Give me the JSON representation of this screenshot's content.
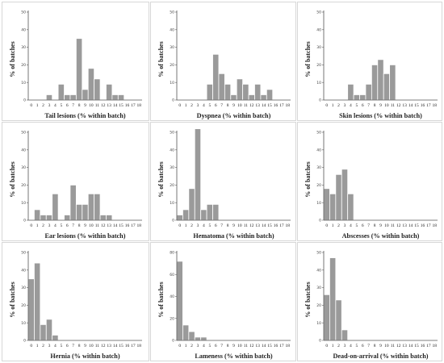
{
  "chart_data": [
    {
      "type": "bar",
      "xlabel": "Tail lesions (% within batch)",
      "ylabel": "% of batches",
      "ylim": [
        0,
        50
      ],
      "yticks": [
        0,
        10,
        20,
        30,
        40,
        50
      ],
      "categories": [
        "0",
        "1",
        "2",
        "3",
        "4",
        "5",
        "6",
        "7",
        "8",
        "9",
        "10",
        "11",
        "12",
        "13",
        "14",
        "15",
        "16",
        "17",
        "18"
      ],
      "values": [
        0,
        0,
        0,
        3,
        0,
        9,
        3,
        3,
        35,
        6,
        18,
        12,
        0,
        9,
        3,
        3,
        0,
        0,
        0
      ]
    },
    {
      "type": "bar",
      "xlabel": "Dyspnea (% within batch)",
      "ylabel": "% of batches",
      "ylim": [
        0,
        50
      ],
      "yticks": [
        0,
        10,
        20,
        30,
        40,
        50
      ],
      "categories": [
        "0",
        "1",
        "2",
        "3",
        "4",
        "5",
        "6",
        "7",
        "8",
        "9",
        "10",
        "11",
        "12",
        "13",
        "14",
        "15",
        "16",
        "17",
        "18"
      ],
      "values": [
        0,
        0,
        0,
        0,
        0,
        9,
        26,
        15,
        9,
        3,
        12,
        9,
        3,
        9,
        3,
        6,
        0,
        0,
        0
      ]
    },
    {
      "type": "bar",
      "xlabel": "Skin lesions (% within batch)",
      "ylabel": "% of batches",
      "ylim": [
        0,
        50
      ],
      "yticks": [
        0,
        10,
        20,
        30,
        40,
        50
      ],
      "categories": [
        "0",
        "1",
        "2",
        "3",
        "4",
        "5",
        "6",
        "7",
        "8",
        "9",
        "10",
        "11",
        "12",
        "13",
        "14",
        "15",
        "16",
        "17",
        "18"
      ],
      "values": [
        0,
        0,
        0,
        0,
        9,
        3,
        3,
        9,
        20,
        23,
        15,
        20,
        0,
        0,
        0,
        0,
        0,
        0,
        0
      ]
    },
    {
      "type": "bar",
      "xlabel": "Ear lesions (% within batch)",
      "ylabel": "% of batches",
      "ylim": [
        0,
        50
      ],
      "yticks": [
        0,
        10,
        20,
        30,
        40,
        50
      ],
      "categories": [
        "0",
        "1",
        "2",
        "3",
        "4",
        "5",
        "6",
        "7",
        "8",
        "9",
        "10",
        "11",
        "12",
        "13",
        "14",
        "15",
        "16",
        "17",
        "18"
      ],
      "values": [
        0,
        6,
        3,
        3,
        15,
        0,
        3,
        20,
        9,
        9,
        15,
        15,
        3,
        3,
        0,
        0,
        0,
        0,
        0
      ]
    },
    {
      "type": "bar",
      "xlabel": "Hematoma (% within batch)",
      "ylabel": "% of batches",
      "ylim": [
        0,
        50
      ],
      "yticks": [
        0,
        10,
        20,
        30,
        40,
        50
      ],
      "categories": [
        "0",
        "1",
        "2",
        "3",
        "4",
        "5",
        "6",
        "7",
        "8",
        "9",
        "10",
        "11",
        "12",
        "13",
        "14",
        "15",
        "16",
        "17",
        "18"
      ],
      "values": [
        3,
        6,
        18,
        52,
        6,
        9,
        9,
        0,
        0,
        0,
        0,
        0,
        0,
        0,
        0,
        0,
        0,
        0,
        0
      ]
    },
    {
      "type": "bar",
      "xlabel": "Abscesses (% within batch)",
      "ylabel": "% of batches",
      "ylim": [
        0,
        50
      ],
      "yticks": [
        0,
        10,
        20,
        30,
        40,
        50
      ],
      "categories": [
        "0",
        "1",
        "2",
        "3",
        "4",
        "5",
        "6",
        "7",
        "8",
        "9",
        "10",
        "11",
        "12",
        "13",
        "14",
        "15",
        "16",
        "17",
        "18"
      ],
      "values": [
        18,
        15,
        26,
        29,
        15,
        0,
        0,
        0,
        0,
        0,
        0,
        0,
        0,
        0,
        0,
        0,
        0,
        0,
        0
      ]
    },
    {
      "type": "bar",
      "xlabel": "Hernia (% within batch)",
      "ylabel": "% of batches",
      "ylim": [
        0,
        50
      ],
      "yticks": [
        0,
        10,
        20,
        30,
        40,
        50
      ],
      "categories": [
        "0",
        "1",
        "2",
        "3",
        "4",
        "5",
        "6",
        "7",
        "8",
        "9",
        "10",
        "11",
        "12",
        "13",
        "14",
        "15",
        "16",
        "17",
        "18"
      ],
      "values": [
        35,
        44,
        9,
        12,
        3,
        0,
        0,
        0,
        0,
        0,
        0,
        0,
        0,
        0,
        0,
        0,
        0,
        0,
        0
      ]
    },
    {
      "type": "bar",
      "xlabel": "Lameness (% within batch)",
      "ylabel": "% of batches",
      "ylim": [
        0,
        80
      ],
      "yticks": [
        0,
        20,
        40,
        60,
        80
      ],
      "categories": [
        "0",
        "1",
        "2",
        "3",
        "4",
        "5",
        "6",
        "7",
        "8",
        "9",
        "10",
        "11",
        "12",
        "13",
        "14",
        "15",
        "16",
        "17",
        "18"
      ],
      "values": [
        72,
        14,
        8,
        3,
        3,
        0,
        0,
        0,
        0,
        0,
        0,
        0,
        0,
        0,
        0,
        0,
        0,
        0,
        0
      ]
    },
    {
      "type": "bar",
      "xlabel": "Dead-on-arrival (% within batch)",
      "ylabel": "% of batches",
      "ylim": [
        0,
        50
      ],
      "yticks": [
        0,
        10,
        20,
        30,
        40,
        50
      ],
      "categories": [
        "0",
        "1",
        "2",
        "3",
        "4",
        "5",
        "6",
        "7",
        "8",
        "9",
        "10",
        "11",
        "12",
        "13",
        "14",
        "15",
        "16",
        "17",
        "18"
      ],
      "values": [
        26,
        47,
        23,
        6,
        0,
        0,
        0,
        0,
        0,
        0,
        0,
        0,
        0,
        0,
        0,
        0,
        0,
        0,
        0
      ]
    }
  ]
}
